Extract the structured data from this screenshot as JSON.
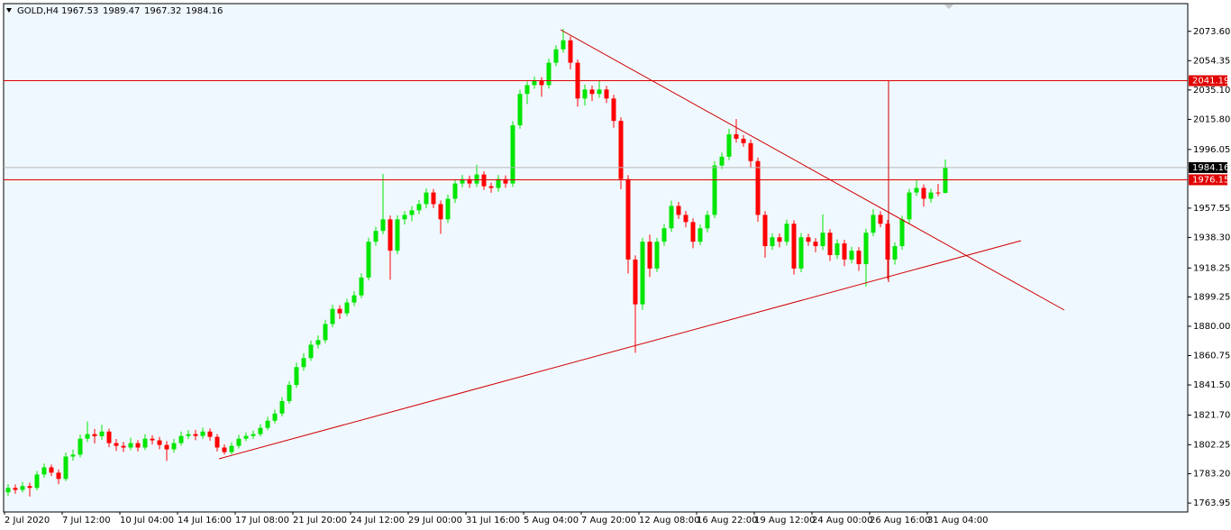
{
  "chart_data": {
    "type": "candlestick",
    "title": "GOLD,H4",
    "categories": [
      "2 Jul 2020",
      null,
      null,
      null,
      null,
      null,
      null,
      null,
      "7 Jul 12:00",
      null,
      null,
      null,
      null,
      null,
      null,
      null,
      "10 Jul 04:00",
      null,
      null,
      null,
      null,
      null,
      null,
      null,
      "14 Jul 16:00",
      null,
      null,
      null,
      null,
      null,
      null,
      null,
      "17 Jul 08:00",
      null,
      null,
      null,
      null,
      null,
      null,
      null,
      "21 Jul 20:00",
      null,
      null,
      null,
      null,
      null,
      null,
      null,
      "24 Jul 12:00",
      null,
      null,
      null,
      null,
      null,
      null,
      null,
      "29 Jul 00:00",
      null,
      null,
      null,
      null,
      null,
      null,
      null,
      "31 Jul 16:00",
      null,
      null,
      null,
      null,
      null,
      null,
      null,
      "5 Aug 04:00",
      null,
      null,
      null,
      null,
      null,
      null,
      null,
      "7 Aug 20:00",
      null,
      null,
      null,
      null,
      null,
      null,
      null,
      "12 Aug 08:00",
      null,
      null,
      null,
      null,
      null,
      null,
      null,
      "16 Aug 22:00",
      null,
      null,
      null,
      null,
      null,
      null,
      null,
      "19 Aug 12:00",
      null,
      null,
      null,
      null,
      null,
      null,
      null,
      "24 Aug 00:00",
      null,
      null,
      null,
      null,
      null,
      null,
      null,
      "26 Aug 16:00",
      null,
      null,
      null,
      null,
      null,
      null,
      null,
      "31 Aug 04:00",
      null,
      null
    ],
    "open": [
      1771.0,
      1773.9,
      1772.6,
      1775.1,
      1773.9,
      1782.7,
      1787.4,
      1783.9,
      1779.8,
      1794.5,
      1795.7,
      1806.2,
      1809.2,
      1807.8,
      1810.9,
      1803.3,
      1801.5,
      1800.4,
      1803.3,
      1800.4,
      1806.2,
      1805.1,
      1802.1,
      1799.2,
      1803.3,
      1808.0,
      1809.2,
      1808.0,
      1810.9,
      1807.4,
      1800.4,
      1797.4,
      1801.5,
      1806.2,
      1808.0,
      1809.2,
      1813.3,
      1818.0,
      1822.7,
      1830.9,
      1841.5,
      1853.2,
      1859.1,
      1867.9,
      1870.9,
      1881.5,
      1891.4,
      1888.5,
      1895.6,
      1900.3,
      1912.0,
      1935.5,
      1942.6,
      1950.2,
      1929.6,
      1950.2,
      1953.1,
      1956.1,
      1960.2,
      1967.8,
      1960.2,
      1950.2,
      1963.7,
      1973.7,
      1976.6,
      1973.7,
      1979.6,
      1971.9,
      1970.8,
      1976.6,
      1973.7,
      2011.9,
      2032.5,
      2038.3,
      2041.3,
      2038.3,
      2053.0,
      2061.8,
      2067.7,
      2053.0,
      2029.5,
      2035.4,
      2032.5,
      2035.4,
      2029.5,
      2014.8,
      1976.6,
      1923.8,
      1894.4,
      1935.5,
      1917.9,
      1935.5,
      1944.3,
      1959.0,
      1953.1,
      1948.4,
      1935.5,
      1944.3,
      1953.1,
      1985.5,
      1991.3,
      2006.0,
      2003.1,
      2000.2,
      1988.4,
      1953.1,
      1932.6,
      1938.4,
      1935.5,
      1947.3,
      1917.9,
      1938.4,
      1935.5,
      1932.6,
      1941.4,
      1926.7,
      1934.4,
      1923.8,
      1929.6,
      1920.8,
      1941.4,
      1953.1,
      1947.3,
      1923.8,
      1932.6,
      1950.2,
      1967.8,
      1970.8,
      1963.7,
      1967.8,
      1967.53
    ],
    "high": [
      1776.4,
      1776.2,
      1777.8,
      1777.3,
      1785.0,
      1789.9,
      1789.2,
      1786.0,
      1797.1,
      1799.0,
      1808.9,
      1817.5,
      1812.6,
      1815.3,
      1812.8,
      1806.0,
      1804.1,
      1806.9,
      1805.2,
      1809.1,
      1808.5,
      1807.4,
      1804.6,
      1806.1,
      1810.9,
      1811.8,
      1812.0,
      1813.6,
      1813.0,
      1809.3,
      1802.5,
      1803.8,
      1808.7,
      1810.3,
      1811.6,
      1815.8,
      1820.6,
      1825.3,
      1833.5,
      1844.0,
      1856.1,
      1862.4,
      1870.6,
      1874.0,
      1884.3,
      1894.2,
      1893.8,
      1898.1,
      1903.0,
      1914.8,
      1938.2,
      1945.3,
      1980.0,
      1952.7,
      1952.9,
      1955.6,
      1958.8,
      1962.9,
      1970.5,
      1970.1,
      1962.5,
      1966.4,
      1976.2,
      1979.4,
      1978.9,
      1986.0,
      1981.7,
      1974.3,
      1979.3,
      1979.0,
      2014.6,
      2035.3,
      2040.7,
      2044.0,
      2043.6,
      2055.6,
      2064.5,
      2075.2,
      2070.3,
      2055.1,
      2038.7,
      2038.0,
      2040.9,
      2037.8,
      2032.0,
      2017.1,
      1979.2,
      1926.5,
      1938.1,
      1940.2,
      1938.0,
      1947.1,
      1962.5,
      1961.6,
      1955.7,
      1950.8,
      1946.8,
      1955.9,
      1988.3,
      1994.0,
      2009.6,
      2016.0,
      2005.5,
      2002.6,
      1990.7,
      1955.6,
      1941.0,
      1940.9,
      1950.0,
      1949.6,
      1941.2,
      1940.7,
      1937.9,
      1953.4,
      1943.7,
      1937.1,
      1936.8,
      1932.2,
      1932.0,
      1944.0,
      1956.9,
      1955.5,
      1949.8,
      1935.1,
      1952.6,
      1970.2,
      1975.9,
      1973.1,
      1970.3,
      1973.4,
      1989.47
    ],
    "low": [
      1768.5,
      1770.1,
      1771.0,
      1768.2,
      1772.4,
      1780.5,
      1781.6,
      1776.3,
      1778.4,
      1791.8,
      1793.9,
      1804.0,
      1803.1,
      1805.5,
      1800.6,
      1798.2,
      1797.5,
      1798.6,
      1797.9,
      1798.8,
      1802.4,
      1799.3,
      1791.6,
      1797.0,
      1801.6,
      1805.9,
      1805.2,
      1806.1,
      1804.9,
      1797.8,
      1795.9,
      1796.0,
      1799.9,
      1804.6,
      1806.1,
      1807.6,
      1811.7,
      1816.2,
      1820.8,
      1829.1,
      1839.6,
      1850.8,
      1857.2,
      1865.5,
      1869.0,
      1879.4,
      1884.7,
      1886.6,
      1893.2,
      1898.4,
      1910.1,
      1932.9,
      1940.4,
      1910.5,
      1927.3,
      1946.8,
      1949.0,
      1953.6,
      1957.4,
      1957.6,
      1940.7,
      1947.8,
      1961.0,
      1971.2,
      1970.9,
      1971.4,
      1969.5,
      1967.6,
      1968.4,
      1970.9,
      1971.5,
      2009.6,
      2025.8,
      2035.9,
      2030.6,
      2036.0,
      2050.7,
      2059.5,
      2048.6,
      2024.2,
      2024.9,
      2027.8,
      2030.0,
      2026.6,
      2010.3,
      1970.0,
      1914.6,
      1862.5,
      1890.8,
      1912.4,
      1915.6,
      1932.8,
      1941.9,
      1950.5,
      1945.0,
      1931.2,
      1933.1,
      1941.6,
      1950.9,
      1983.2,
      1989.0,
      2000.6,
      1997.8,
      1983.9,
      1948.6,
      1925.0,
      1930.2,
      1931.8,
      1933.0,
      1913.9,
      1915.5,
      1932.9,
      1928.6,
      1930.1,
      1922.9,
      1924.2,
      1919.5,
      1921.3,
      1916.4,
      1906.0,
      1939.1,
      1944.9,
      1911.0,
      1920.5,
      1930.2,
      1947.6,
      1965.5,
      1958.5,
      1961.2,
      1965.3,
      1967.32
    ],
    "close": [
      1773.9,
      1772.6,
      1775.1,
      1773.9,
      1782.7,
      1787.4,
      1783.9,
      1779.8,
      1794.5,
      1795.7,
      1806.2,
      1809.2,
      1807.8,
      1810.9,
      1803.3,
      1801.5,
      1800.4,
      1803.3,
      1800.4,
      1806.2,
      1805.1,
      1802.1,
      1799.2,
      1803.3,
      1808.0,
      1809.2,
      1808.0,
      1810.9,
      1807.4,
      1800.4,
      1797.4,
      1801.5,
      1806.2,
      1808.0,
      1809.2,
      1813.3,
      1818.0,
      1822.7,
      1830.9,
      1841.5,
      1853.2,
      1859.1,
      1867.9,
      1870.9,
      1881.5,
      1891.4,
      1888.5,
      1895.6,
      1900.3,
      1912.0,
      1935.5,
      1942.6,
      1950.2,
      1929.6,
      1950.2,
      1953.1,
      1956.1,
      1960.2,
      1967.8,
      1960.2,
      1950.2,
      1963.7,
      1973.7,
      1976.6,
      1973.7,
      1979.6,
      1971.9,
      1970.8,
      1976.6,
      1973.7,
      2011.9,
      2032.5,
      2038.3,
      2041.3,
      2038.3,
      2053.0,
      2061.8,
      2067.7,
      2053.0,
      2029.5,
      2035.4,
      2032.5,
      2035.4,
      2029.5,
      2014.8,
      1976.6,
      1923.8,
      1894.4,
      1935.5,
      1917.9,
      1935.5,
      1944.3,
      1959.0,
      1953.1,
      1948.4,
      1935.5,
      1944.3,
      1953.1,
      1985.5,
      1991.3,
      2006.0,
      2003.1,
      2000.2,
      1988.4,
      1953.1,
      1932.6,
      1938.4,
      1935.5,
      1947.3,
      1917.9,
      1938.4,
      1935.5,
      1932.6,
      1941.4,
      1926.7,
      1934.4,
      1923.8,
      1929.6,
      1920.8,
      1941.4,
      1953.1,
      1947.3,
      1923.8,
      1932.6,
      1950.2,
      1967.8,
      1970.8,
      1963.7,
      1967.8,
      1967.5,
      1984.16
    ],
    "ylim": [
      1758.1,
      2091.8
    ],
    "yticks": [
      {
        "value": 2073.6,
        "label": "2073.60"
      },
      2054.35,
      {
        "value": 2035.1,
        "label": "2035.10"
      },
      {
        "value": 2015.8,
        "label": "2015.80"
      },
      1996.05,
      1957.55,
      {
        "value": 1938.3,
        "label": "1938.30"
      },
      1918.25,
      1899.25,
      {
        "value": 1880,
        "label": "1880.00"
      },
      1860.75,
      {
        "value": 1841.5,
        "label": "1841.50"
      },
      {
        "value": 1821.7,
        "label": "1821.70"
      },
      1802.25,
      {
        "value": 1783.2,
        "label": "1783.20"
      },
      1763.95
    ],
    "levels": [
      2041.19,
      1976.15
    ],
    "level_color": "#e00000",
    "up_color": "#00e600",
    "down_color": "#ff0000",
    "price_line_color": "#b8b8b8"
  }
}
